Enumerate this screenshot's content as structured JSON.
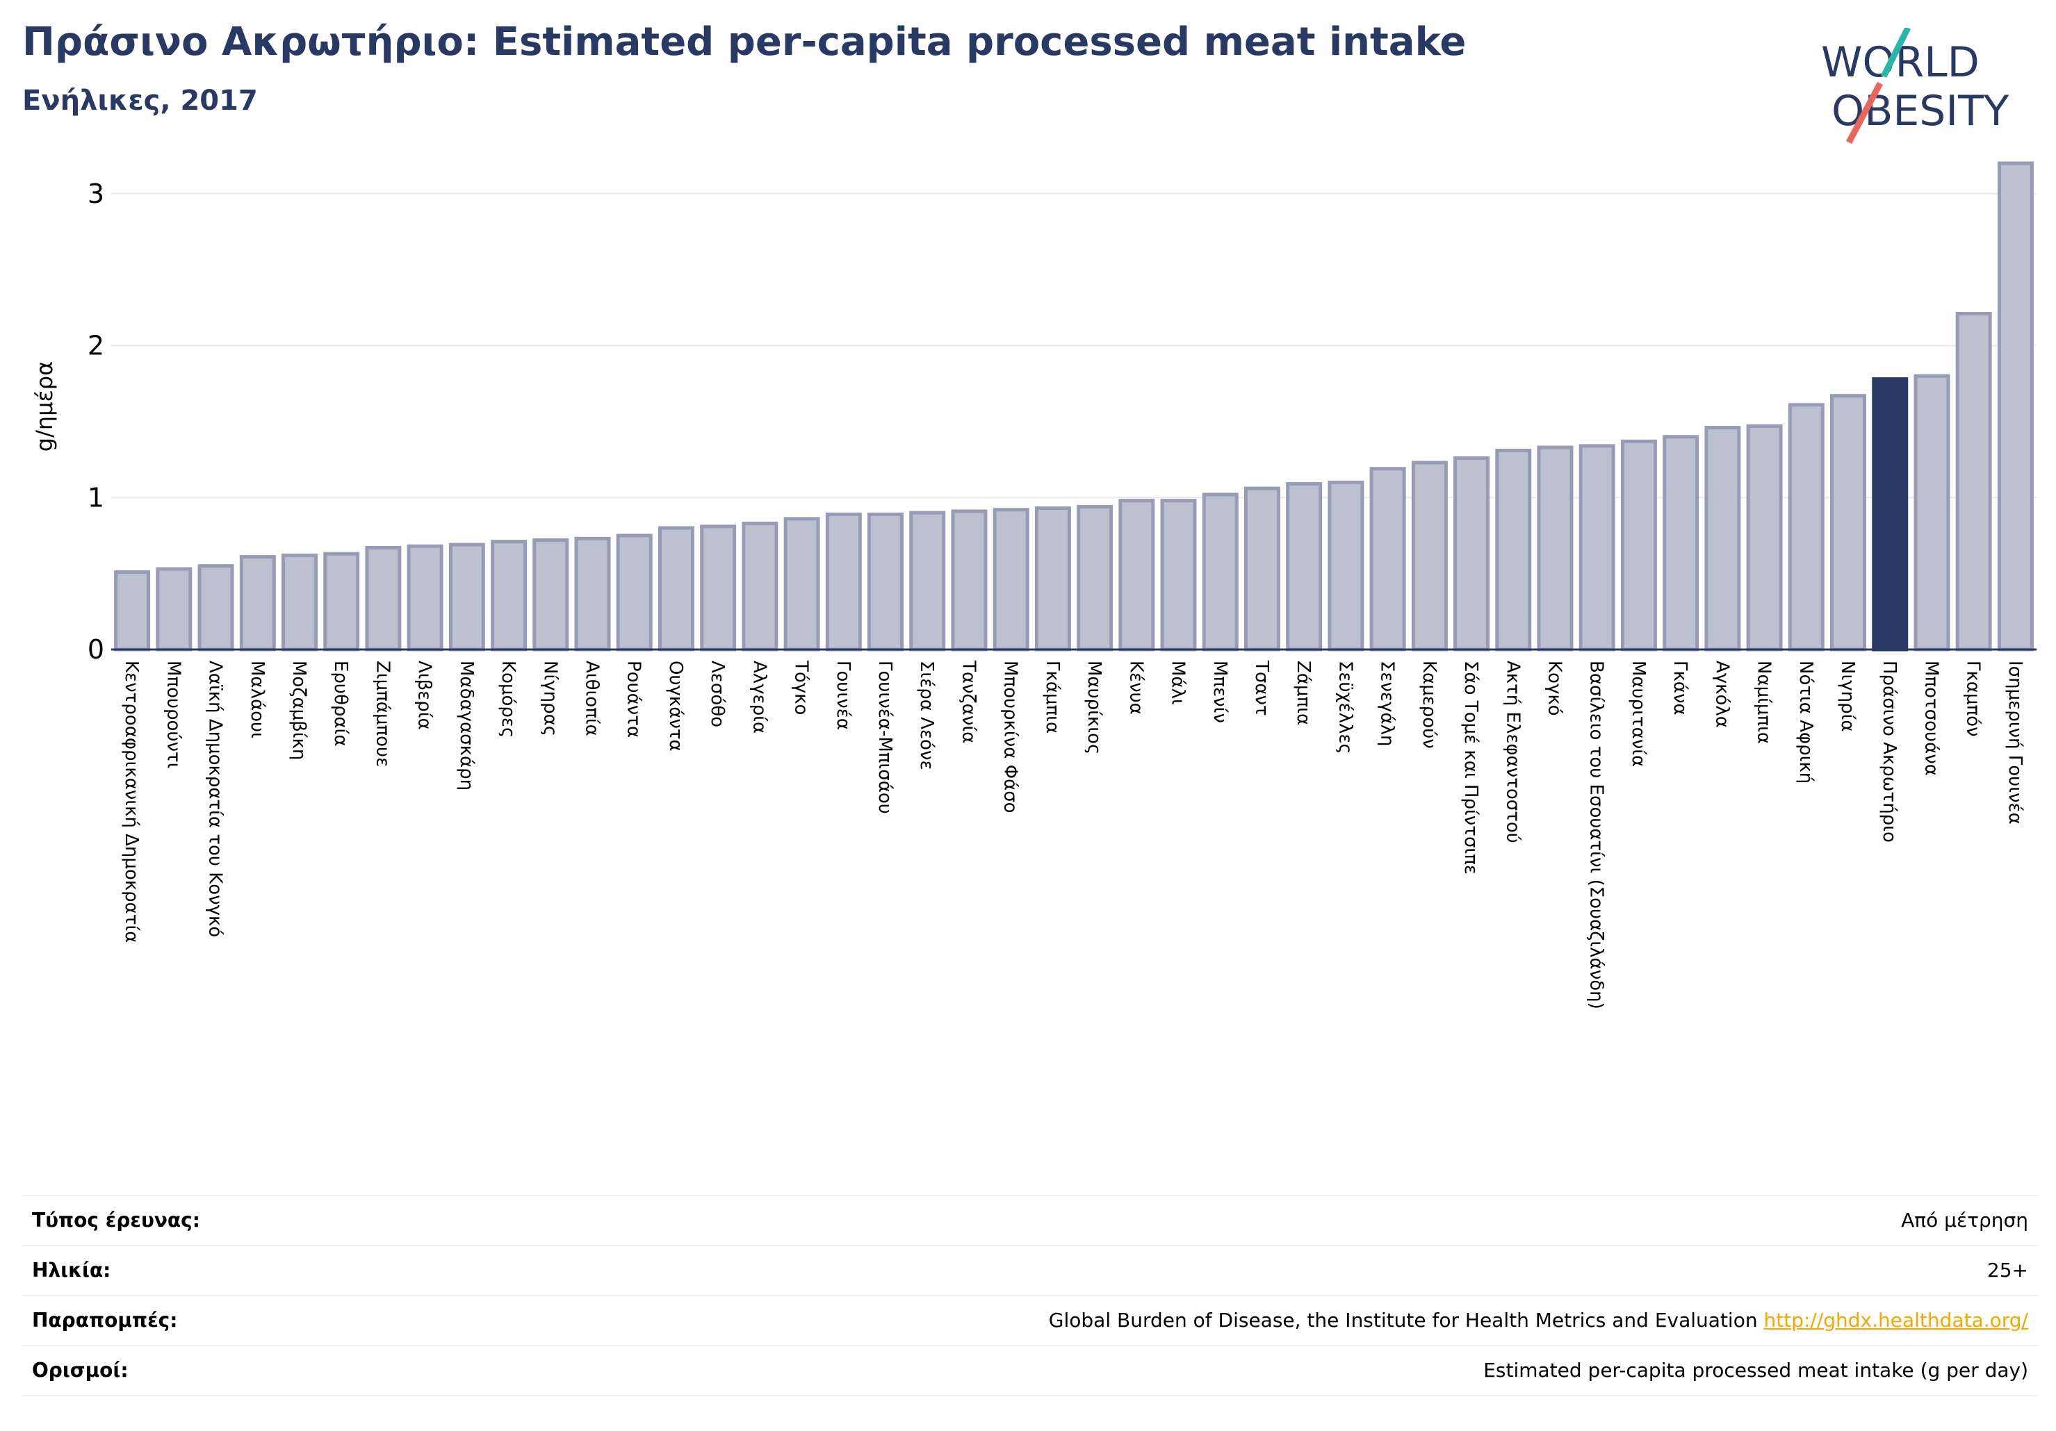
{
  "header": {
    "title": "Πράσινο Ακρωτήριο: Estimated per-capita processed meat intake",
    "subtitle": "Ενήλικες, 2017"
  },
  "logo": {
    "line1": "WORLD",
    "line2": "OBESITY",
    "colors": {
      "text": "#283a64",
      "slash_top": "#2ab7a9",
      "slash_bottom": "#e8665a"
    }
  },
  "colors": {
    "bar_fill": "#bcc1cf",
    "bar_stroke": "#969cb5",
    "highlight": "#283a64",
    "grid": "#e8e9ef",
    "link": "#f5a800"
  },
  "chart_data": {
    "type": "bar",
    "ylabel": "g/ημέρα",
    "ylim": [
      0,
      3.2
    ],
    "yticks": [
      "0",
      "1",
      "2",
      "3"
    ],
    "ytick_values": [
      0,
      1,
      2,
      3
    ],
    "grid": true,
    "highlight": "Πράσινο Ακρωτήριο",
    "categories": [
      "Κεντροαφρικανική Δημοκρατία",
      "Μπουρούντι",
      "Λαϊκή Δημοκρατία του Κονγκό",
      "Μαλάουι",
      "Μοζαμβίκη",
      "Ερυθραία",
      "Ζιμπάμπουε",
      "Λιβερία",
      "Μαδαγασκάρη",
      "Κομόρες",
      "Νίγηρας",
      "Αιθιοπία",
      "Ρουάντα",
      "Ουγκάντα",
      "Λεσόθο",
      "Αλγερία",
      "Τόγκο",
      "Γουινέα",
      "Γουινέα-Μπισάου",
      "Σιέρα Λεόνε",
      "Τανζανία",
      "Μπουρκίνα Φάσο",
      "Γκάμπια",
      "Μαυρίκιος",
      "Κένυα",
      "Μάλι",
      "Μπενίν",
      "Τσαντ",
      "Ζάμπια",
      "Σεϋχέλλες",
      "Σενεγάλη",
      "Καμερούν",
      "Σάο Τομέ και Πρίντσιπε",
      "Ακτή Ελεφαντοστού",
      "Κογκό",
      "Βασίλειο του Εσουατίνι (Σουαζιλάνδη)",
      "Μαυριτανία",
      "Γκάνα",
      "Αγκόλα",
      "Ναμίμπια",
      "Νότια Αφρική",
      "Νιγηρία",
      "Πράσινο Ακρωτήριο",
      "Μποτσουάνα",
      "Γκαμπόν",
      "Ισημερινή Γουινέα"
    ],
    "values": [
      0.51,
      0.53,
      0.55,
      0.61,
      0.62,
      0.63,
      0.67,
      0.68,
      0.69,
      0.71,
      0.72,
      0.73,
      0.75,
      0.8,
      0.81,
      0.83,
      0.86,
      0.89,
      0.89,
      0.9,
      0.91,
      0.92,
      0.93,
      0.94,
      0.98,
      0.98,
      1.02,
      1.06,
      1.09,
      1.1,
      1.19,
      1.23,
      1.26,
      1.31,
      1.33,
      1.34,
      1.37,
      1.4,
      1.46,
      1.47,
      1.61,
      1.67,
      1.78,
      1.8,
      2.21,
      3.2
    ]
  },
  "info": {
    "survey_type_label": "Τύπος έρευνας:",
    "survey_type_value": "Από μέτρηση",
    "age_label": "Ηλικία:",
    "age_value": "25+",
    "references_label": "Παραπομπές:",
    "references_value": "Global Burden of Disease, the Institute for Health Metrics and Evaluation ",
    "references_link": "http://ghdx.healthdata.org/",
    "definitions_label": "Ορισμοί:",
    "definitions_value": "Estimated per-capita processed meat intake (g per day)"
  }
}
